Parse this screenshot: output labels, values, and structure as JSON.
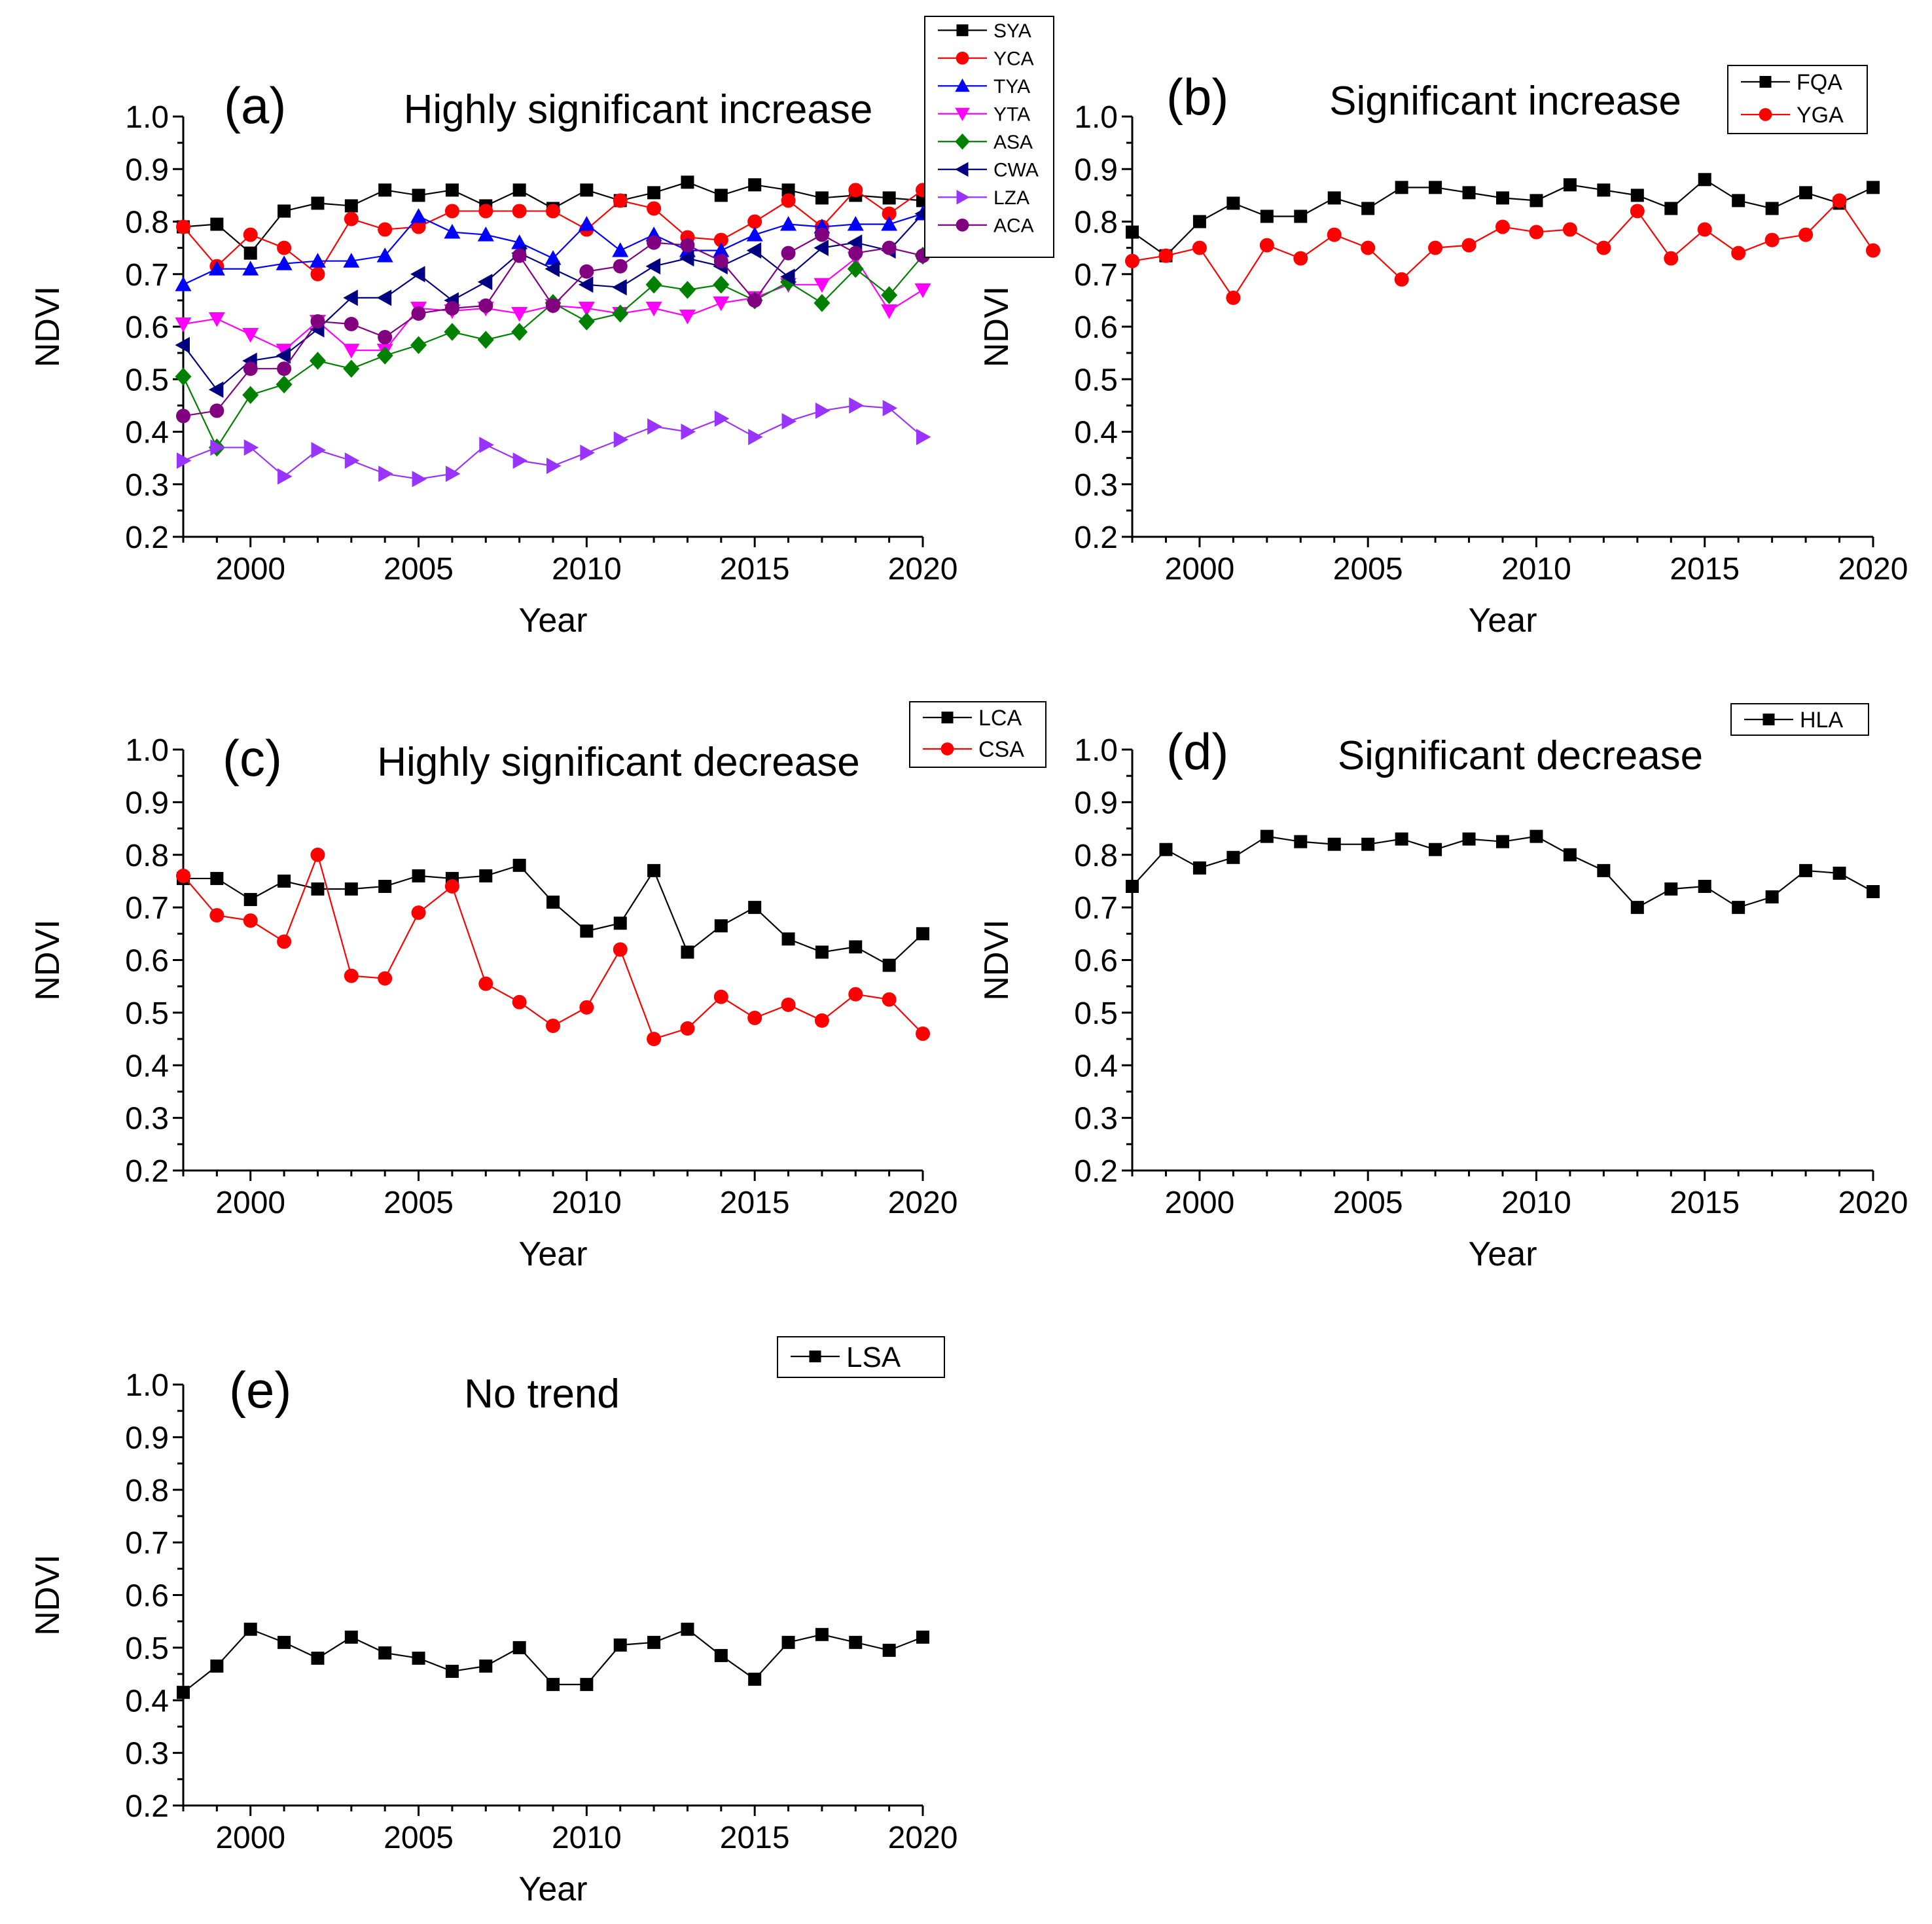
{
  "chart_data": [
    {
      "type": "line",
      "panel_label": "(a)",
      "title": "Highly significant increase",
      "xlabel": "Year",
      "ylabel": "NDVI",
      "xlim": [
        1998,
        2020
      ],
      "ylim": [
        0.2,
        1.0
      ],
      "xticks": [
        "2000",
        "2005",
        "2010",
        "2015",
        "2020"
      ],
      "yticks": [
        "0.2",
        "0.3",
        "0.4",
        "0.5",
        "0.6",
        "0.7",
        "0.8",
        "0.9",
        "1.0"
      ],
      "legend_position": "top-right",
      "x": [
        1998,
        1999,
        2000,
        2001,
        2002,
        2003,
        2004,
        2005,
        2006,
        2007,
        2008,
        2009,
        2010,
        2011,
        2012,
        2013,
        2014,
        2015,
        2016,
        2017,
        2018,
        2019,
        2020
      ],
      "series": [
        {
          "name": "SYA",
          "color": "#000000",
          "marker": "square",
          "values": [
            0.79,
            0.795,
            0.74,
            0.82,
            0.835,
            0.83,
            0.86,
            0.85,
            0.86,
            0.83,
            0.86,
            0.825,
            0.86,
            0.84,
            0.855,
            0.875,
            0.85,
            0.87,
            0.86,
            0.845,
            0.85,
            0.845,
            0.84
          ]
        },
        {
          "name": "YCA",
          "color": "#ff0000",
          "marker": "circle",
          "values": [
            0.79,
            0.715,
            0.775,
            0.75,
            0.7,
            0.805,
            0.785,
            0.79,
            0.82,
            0.82,
            0.82,
            0.82,
            0.785,
            0.84,
            0.825,
            0.77,
            0.765,
            0.8,
            0.84,
            0.79,
            0.86,
            0.815,
            0.86
          ]
        },
        {
          "name": "TYA",
          "color": "#0000ff",
          "marker": "triangle-up",
          "values": [
            0.68,
            0.71,
            0.71,
            0.72,
            0.725,
            0.725,
            0.735,
            0.81,
            0.78,
            0.775,
            0.76,
            0.73,
            0.795,
            0.745,
            0.775,
            0.745,
            0.745,
            0.775,
            0.795,
            0.79,
            0.795,
            0.795,
            0.815
          ]
        },
        {
          "name": "YTA",
          "color": "#ff00ff",
          "marker": "triangle-down",
          "values": [
            0.605,
            0.615,
            0.585,
            0.555,
            0.61,
            0.555,
            0.555,
            0.635,
            0.63,
            0.635,
            0.625,
            0.64,
            0.635,
            0.625,
            0.635,
            0.62,
            0.645,
            0.655,
            0.68,
            0.68,
            0.73,
            0.63,
            0.67
          ]
        },
        {
          "name": "ASA",
          "color": "#008000",
          "marker": "diamond",
          "values": [
            0.505,
            0.37,
            0.47,
            0.49,
            0.535,
            0.52,
            0.545,
            0.565,
            0.59,
            0.575,
            0.59,
            0.645,
            0.61,
            0.625,
            0.68,
            0.67,
            0.68,
            0.65,
            0.685,
            0.645,
            0.71,
            0.66,
            0.735
          ]
        },
        {
          "name": "CWA",
          "color": "#000080",
          "marker": "triangle-left",
          "values": [
            0.565,
            0.48,
            0.535,
            0.545,
            0.595,
            0.655,
            0.655,
            0.7,
            0.65,
            0.685,
            0.74,
            0.71,
            0.68,
            0.675,
            0.715,
            0.73,
            0.715,
            0.745,
            0.695,
            0.75,
            0.76,
            0.745,
            0.815
          ]
        },
        {
          "name": "LZA",
          "color": "#9933ff",
          "marker": "triangle-right",
          "values": [
            0.345,
            0.37,
            0.37,
            0.315,
            0.365,
            0.345,
            0.32,
            0.31,
            0.32,
            0.375,
            0.345,
            0.335,
            0.36,
            0.385,
            0.41,
            0.4,
            0.425,
            0.39,
            0.42,
            0.44,
            0.45,
            0.445,
            0.39
          ]
        },
        {
          "name": "ACA",
          "color": "#800080",
          "marker": "circle",
          "values": [
            0.43,
            0.44,
            0.52,
            0.52,
            0.61,
            0.605,
            0.58,
            0.625,
            0.635,
            0.64,
            0.735,
            0.64,
            0.705,
            0.715,
            0.76,
            0.755,
            0.725,
            0.65,
            0.74,
            0.775,
            0.74,
            0.75,
            0.735
          ]
        }
      ]
    },
    {
      "type": "line",
      "panel_label": "(b)",
      "title": "Significant increase",
      "xlabel": "Year",
      "ylabel": "NDVI",
      "xlim": [
        1998,
        2020
      ],
      "ylim": [
        0.2,
        1.0
      ],
      "xticks": [
        "2000",
        "2005",
        "2010",
        "2015",
        "2020"
      ],
      "yticks": [
        "0.2",
        "0.3",
        "0.4",
        "0.5",
        "0.6",
        "0.7",
        "0.8",
        "0.9",
        "1.0"
      ],
      "legend_position": "top-right",
      "x": [
        1998,
        1999,
        2000,
        2001,
        2002,
        2003,
        2004,
        2005,
        2006,
        2007,
        2008,
        2009,
        2010,
        2011,
        2012,
        2013,
        2014,
        2015,
        2016,
        2017,
        2018,
        2019,
        2020
      ],
      "series": [
        {
          "name": "FQA",
          "color": "#000000",
          "marker": "square",
          "values": [
            0.78,
            0.735,
            0.8,
            0.835,
            0.81,
            0.81,
            0.845,
            0.825,
            0.865,
            0.865,
            0.855,
            0.845,
            0.84,
            0.87,
            0.86,
            0.85,
            0.825,
            0.88,
            0.84,
            0.825,
            0.855,
            0.835,
            0.865
          ]
        },
        {
          "name": "YGA",
          "color": "#ff0000",
          "marker": "circle",
          "values": [
            0.725,
            0.735,
            0.75,
            0.655,
            0.755,
            0.73,
            0.775,
            0.75,
            0.69,
            0.75,
            0.755,
            0.79,
            0.78,
            0.785,
            0.75,
            0.82,
            0.73,
            0.785,
            0.74,
            0.765,
            0.775,
            0.84,
            0.745
          ]
        }
      ]
    },
    {
      "type": "line",
      "panel_label": "(c)",
      "title": "Highly significant decrease",
      "xlabel": "Year",
      "ylabel": "NDVI",
      "xlim": [
        1998,
        2020
      ],
      "ylim": [
        0.2,
        1.0
      ],
      "xticks": [
        "2000",
        "2005",
        "2010",
        "2015",
        "2020"
      ],
      "yticks": [
        "0.2",
        "0.3",
        "0.4",
        "0.5",
        "0.6",
        "0.7",
        "0.8",
        "0.9",
        "1.0"
      ],
      "legend_position": "top-right",
      "x": [
        1998,
        1999,
        2000,
        2001,
        2002,
        2003,
        2004,
        2005,
        2006,
        2007,
        2008,
        2009,
        2010,
        2011,
        2012,
        2013,
        2014,
        2015,
        2016,
        2017,
        2018,
        2019,
        2020
      ],
      "series": [
        {
          "name": "LCA",
          "color": "#000000",
          "marker": "square",
          "values": [
            0.755,
            0.755,
            0.715,
            0.75,
            0.735,
            0.735,
            0.74,
            0.76,
            0.755,
            0.76,
            0.78,
            0.71,
            0.655,
            0.67,
            0.77,
            0.615,
            0.665,
            0.7,
            0.64,
            0.615,
            0.625,
            0.59,
            0.65
          ]
        },
        {
          "name": "CSA",
          "color": "#ff0000",
          "marker": "circle",
          "values": [
            0.76,
            0.685,
            0.675,
            0.635,
            0.8,
            0.57,
            0.565,
            0.69,
            0.74,
            0.555,
            0.52,
            0.475,
            0.51,
            0.62,
            0.45,
            0.47,
            0.53,
            0.49,
            0.515,
            0.485,
            0.535,
            0.525,
            0.46
          ]
        }
      ]
    },
    {
      "type": "line",
      "panel_label": "(d)",
      "title": "Significant decrease",
      "xlabel": "Year",
      "ylabel": "NDVI",
      "xlim": [
        1998,
        2020
      ],
      "ylim": [
        0.2,
        1.0
      ],
      "xticks": [
        "2000",
        "2005",
        "2010",
        "2015",
        "2020"
      ],
      "yticks": [
        "0.2",
        "0.3",
        "0.4",
        "0.5",
        "0.6",
        "0.7",
        "0.8",
        "0.9",
        "1.0"
      ],
      "legend_position": "top-right",
      "x": [
        1998,
        1999,
        2000,
        2001,
        2002,
        2003,
        2004,
        2005,
        2006,
        2007,
        2008,
        2009,
        2010,
        2011,
        2012,
        2013,
        2014,
        2015,
        2016,
        2017,
        2018,
        2019,
        2020
      ],
      "series": [
        {
          "name": "HLA",
          "color": "#000000",
          "marker": "square",
          "values": [
            0.74,
            0.81,
            0.775,
            0.795,
            0.835,
            0.825,
            0.82,
            0.82,
            0.83,
            0.81,
            0.83,
            0.825,
            0.835,
            0.8,
            0.77,
            0.7,
            0.735,
            0.74,
            0.7,
            0.72,
            0.77,
            0.765,
            0.73
          ]
        }
      ]
    },
    {
      "type": "line",
      "panel_label": "(e)",
      "title": "No trend",
      "xlabel": "Year",
      "ylabel": "NDVI",
      "xlim": [
        1998,
        2020
      ],
      "ylim": [
        0.2,
        1.0
      ],
      "xticks": [
        "2000",
        "2005",
        "2010",
        "2015",
        "2020"
      ],
      "yticks": [
        "0.2",
        "0.3",
        "0.4",
        "0.5",
        "0.6",
        "0.7",
        "0.8",
        "0.9",
        "1.0"
      ],
      "legend_position": "top-right",
      "x": [
        1998,
        1999,
        2000,
        2001,
        2002,
        2003,
        2004,
        2005,
        2006,
        2007,
        2008,
        2009,
        2010,
        2011,
        2012,
        2013,
        2014,
        2015,
        2016,
        2017,
        2018,
        2019,
        2020
      ],
      "series": [
        {
          "name": "LSA",
          "color": "#000000",
          "marker": "square",
          "values": [
            0.415,
            0.465,
            0.535,
            0.51,
            0.48,
            0.52,
            0.49,
            0.48,
            0.455,
            0.465,
            0.5,
            0.43,
            0.43,
            0.505,
            0.51,
            0.535,
            0.485,
            0.44,
            0.51,
            0.525,
            0.51,
            0.495,
            0.52
          ]
        }
      ]
    }
  ]
}
